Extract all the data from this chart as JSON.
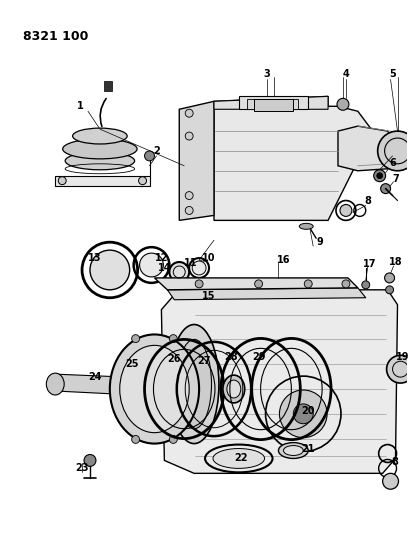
{
  "title": "8321 100",
  "bg_color": "#ffffff",
  "line_color": "#000000",
  "label_color": "#000000",
  "title_fontsize": 9,
  "label_fontsize": 7,
  "fig_width": 4.1,
  "fig_height": 5.33,
  "dpi": 100
}
